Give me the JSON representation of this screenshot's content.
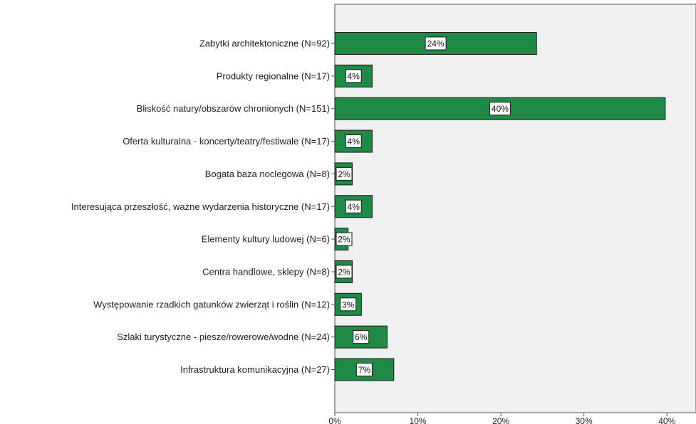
{
  "chart_data": {
    "type": "bar",
    "orientation": "horizontal",
    "title": "",
    "xlabel": "",
    "ylabel": "",
    "categories": [
      "Zabytki architektoniczne (N=92)",
      "Produkty regionalne (N=17)",
      "Bliskość natury/obszarów chronionych (N=151)",
      "Oferta kulturalna - koncerty/teatry/festiwale (N=17)",
      "Bogata baza noclegowa (N=8)",
      "Interesująca przeszłość, ważne wydarzenia historyczne (N=17)",
      "Elementy kultury ludowej (N=6)",
      "Centra handlowe, sklepy (N=8)",
      "Występowanie rzadkich gatunków zwierząt i roślin (N=12)",
      "Szlaki turystyczne - piesze/rowerowe/wodne (N=24)",
      "Infrastruktura komunikacyjna (N=27)"
    ],
    "values": [
      24.3,
      4.5,
      39.8,
      4.5,
      2.1,
      4.5,
      1.6,
      2.1,
      3.2,
      6.3,
      7.1
    ],
    "data_labels": [
      "24%",
      "4%",
      "40%",
      "4%",
      "2%",
      "4%",
      "2%",
      "2%",
      "3%",
      "6%",
      "7%"
    ],
    "xlim": [
      0,
      43.5
    ],
    "x_ticks": [
      0,
      10,
      20,
      30,
      40
    ],
    "x_tick_labels": [
      "0%",
      "10%",
      "20%",
      "30%",
      "40%"
    ],
    "grid": false,
    "legend": "none",
    "colors": {
      "bar": "#1e8a45",
      "bar_edge": "#1a1a1a",
      "plot_background": "#f0f0f0",
      "axis": "#555555"
    }
  }
}
